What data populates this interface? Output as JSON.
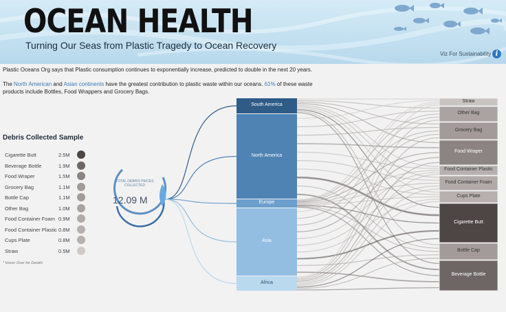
{
  "header": {
    "title": "OCEAN HEALTH",
    "subtitle": "Turning Our Seas from Plastic Tragedy to Ocean Recovery",
    "viz_link": "Viz For Sustainability",
    "info_icon": "info-icon"
  },
  "intro": {
    "line1": "Plastic Oceans Org says that Plastic consumption continues to exponentially increase, predicted to double in the next 20 years.",
    "line2_pre": "The ",
    "line2_hl1": "North American",
    "line2_mid": " and ",
    "line2_hl2": "Asian continents",
    "line2_post": " have the greatest contribution to plastic waste within our oceans. ",
    "line2_pct": "61%",
    "line2_end": "  of these waste products include Bottles, Food Wrappers and Grocery Bags."
  },
  "debris": {
    "title": "Debris  Collected Sample",
    "note": "* Hover Over for Details",
    "items": [
      {
        "name": "Cigarette Butt",
        "value": "2.5M",
        "color": "#4e4545"
      },
      {
        "name": "Beverage Bottle",
        "value": "1.9M",
        "color": "#6d6664"
      },
      {
        "name": "Food Wraper",
        "value": "1.5M",
        "color": "#8c8482"
      },
      {
        "name": "Grocery Bag",
        "value": "1.1M",
        "color": "#a39b99"
      },
      {
        "name": "Bottle Cap",
        "value": "1.1M",
        "color": "#a39b99"
      },
      {
        "name": "Other Bag",
        "value": "1.0M",
        "color": "#aaa3a1"
      },
      {
        "name": "Food  Container Foam",
        "value": "0.9M",
        "color": "#b1aaa8"
      },
      {
        "name": "Food Container Plastic",
        "value": "0.8M",
        "color": "#b7b0ae"
      },
      {
        "name": "Cups Plate",
        "value": "0.8M",
        "color": "#b7b0ae"
      },
      {
        "name": "Straw",
        "value": "0.5M",
        "color": "#cfc9c7"
      }
    ]
  },
  "total": {
    "label": "TOTAL DEBRIS PEICES COLLECTED",
    "value": "12.09 M"
  },
  "continents": [
    {
      "name": "South America",
      "color": "#2f5b87"
    },
    {
      "name": "North America",
      "color": "#4f83b4"
    },
    {
      "name": "Europe",
      "color": "#6c9fcd"
    },
    {
      "name": "Asia",
      "color": "#93bee2"
    },
    {
      "name": "Africa",
      "color": "#b9d9ef"
    }
  ],
  "debris_types": [
    {
      "name": "Straw",
      "color": "#c9c3c1"
    },
    {
      "name": "Other Bag",
      "color": "#aaa3a1"
    },
    {
      "name": "Grocery Bag",
      "color": "#a39b99"
    },
    {
      "name": "Food Wraper",
      "color": "#8c8482"
    },
    {
      "name": "Food Container Plastic",
      "color": "#b7b0ae"
    },
    {
      "name": "Food  Container Foam",
      "color": "#b1aaa8"
    },
    {
      "name": "Cups Plate",
      "color": "#b7b0ae"
    },
    {
      "name": "Cigarette Butt",
      "color": "#4e4545"
    },
    {
      "name": "Bottle Cap",
      "color": "#a39b99"
    },
    {
      "name": "Beverage Bottle",
      "color": "#6d6664"
    }
  ]
}
